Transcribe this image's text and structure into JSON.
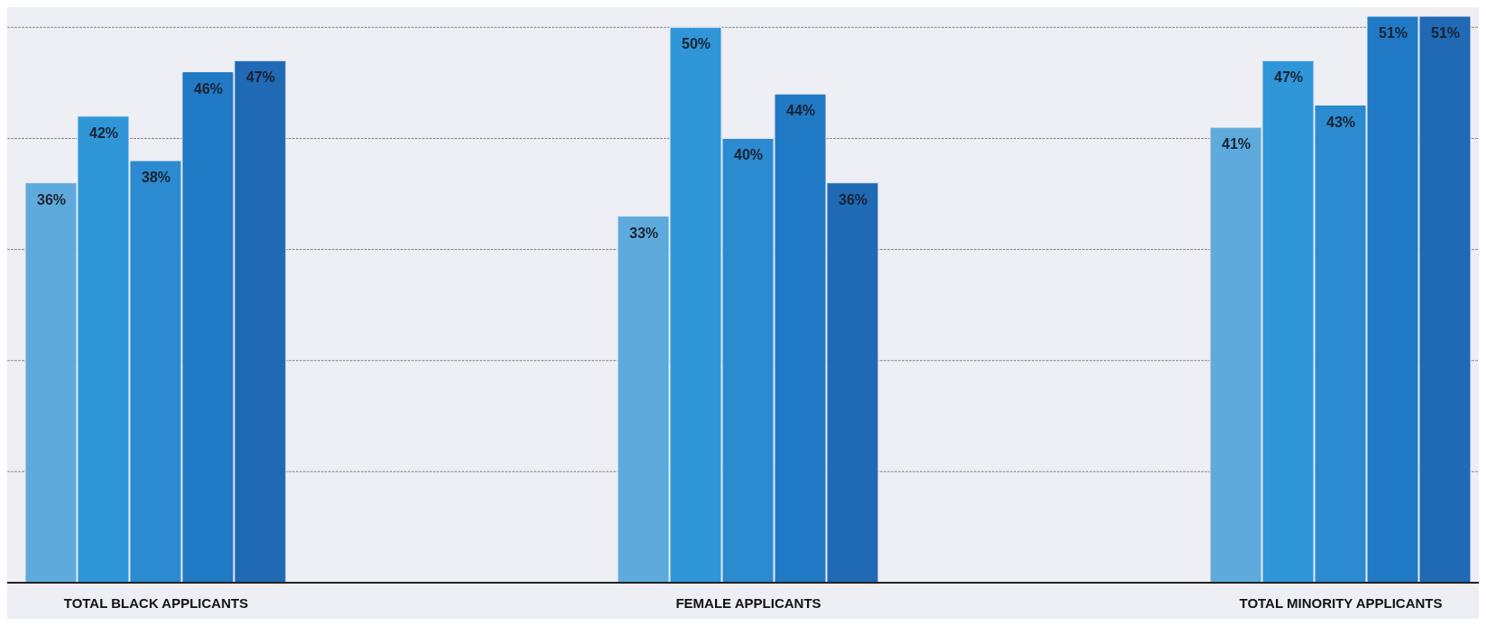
{
  "chart_data": {
    "type": "bar",
    "categories": [
      "TOTAL BLACK APPLICANTS",
      "FEMALE APPLICANTS",
      "TOTAL MINORITY APPLICANTS"
    ],
    "series": [
      {
        "color": "#5eaadc",
        "values": [
          36,
          33,
          41
        ],
        "value_labels": [
          "36%",
          "33%",
          "41%"
        ]
      },
      {
        "color": "#2f96d8",
        "values": [
          42,
          50,
          47
        ],
        "value_labels": [
          "42%",
          "50%",
          "47%"
        ]
      },
      {
        "color": "#2b8ad0",
        "values": [
          38,
          40,
          43
        ],
        "value_labels": [
          "38%",
          "40%",
          "43%"
        ]
      },
      {
        "color": "#2079c4",
        "values": [
          46,
          44,
          51
        ],
        "value_labels": [
          "46%",
          "44%",
          "51%"
        ]
      },
      {
        "color": "#1f69b5",
        "values": [
          47,
          36,
          51
        ],
        "value_labels": [
          "47%",
          "36%",
          "51%"
        ]
      }
    ],
    "yticks": [
      {
        "value": 10,
        "label": null
      },
      {
        "value": 20,
        "label": null
      },
      {
        "value": 30,
        "label": null
      },
      {
        "value": 40,
        "label": null
      },
      {
        "value": 50,
        "label": null
      }
    ],
    "tick_labels": "x",
    "grid": "y"
  }
}
